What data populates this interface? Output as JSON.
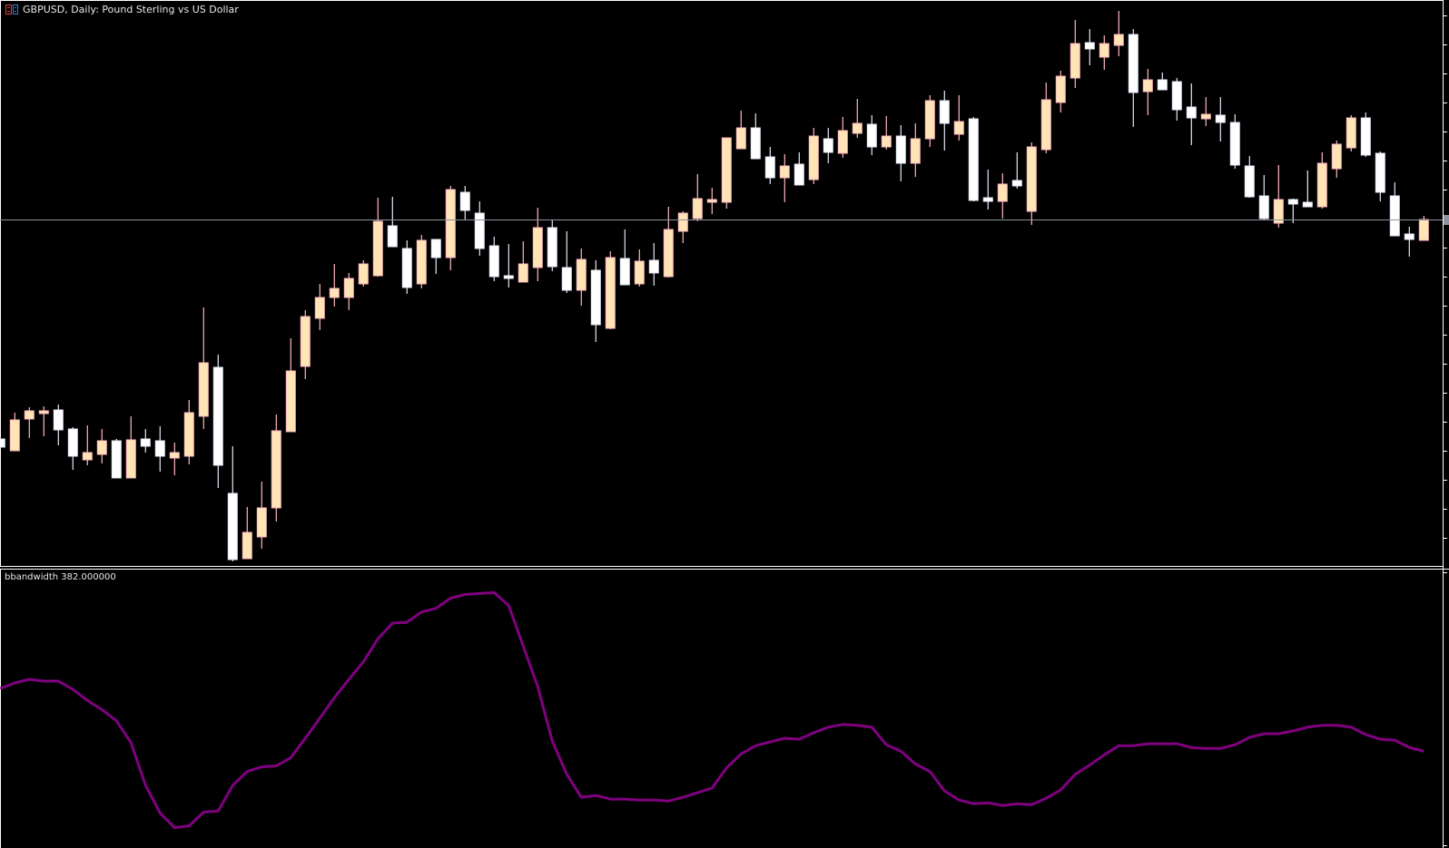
{
  "window": {
    "symbol_title": "GBPUSD, Daily:  Pound Sterling vs US Dollar"
  },
  "indicator": {
    "label": "bbandwidth 382.000000",
    "color": "#800080"
  },
  "colors": {
    "background": "#000000",
    "bull_body": "#FFE4B5",
    "bull_outline": "#FFB6C1",
    "bear_body": "#FFFFFF",
    "bear_outline": "#E6E6FA",
    "grid_border": "#FFFFFF",
    "price_line": "#8C939C"
  },
  "chart_data": [
    {
      "type": "candlestick",
      "title": "GBPUSD, Daily:  Pound Sterling vs US Dollar",
      "ylim": [
        76,
        700
      ],
      "current_price": 458,
      "ohlc": [
        [
          216,
          218,
          205,
          207
        ],
        [
          203,
          245,
          203,
          237
        ],
        [
          238,
          251,
          217,
          247
        ],
        [
          244,
          252,
          219,
          247
        ],
        [
          248,
          254,
          209,
          226
        ],
        [
          227,
          229,
          182,
          197
        ],
        [
          193,
          231,
          187,
          201
        ],
        [
          199,
          227,
          189,
          214
        ],
        [
          214,
          216,
          173,
          173
        ],
        [
          173,
          241,
          173,
          215
        ],
        [
          216,
          227,
          201,
          208
        ],
        [
          214,
          230,
          180,
          197
        ],
        [
          195,
          212,
          176,
          201
        ],
        [
          197,
          259,
          188,
          245
        ],
        [
          241,
          361,
          227,
          300
        ],
        [
          295,
          309,
          162,
          187
        ],
        [
          156,
          208,
          81,
          83
        ],
        [
          84,
          141,
          84,
          113
        ],
        [
          108,
          169,
          95,
          140
        ],
        [
          140,
          243,
          125,
          225
        ],
        [
          224,
          327,
          224,
          291
        ],
        [
          296,
          358,
          282,
          351
        ],
        [
          349,
          387,
          336,
          372
        ],
        [
          372,
          409,
          362,
          382
        ],
        [
          372,
          399,
          358,
          393
        ],
        [
          387,
          413,
          384,
          409
        ],
        [
          396,
          482,
          395,
          456
        ],
        [
          451,
          483,
          428,
          428
        ],
        [
          426,
          435,
          376,
          383
        ],
        [
          387,
          441,
          382,
          435
        ],
        [
          436,
          436,
          398,
          416
        ],
        [
          416,
          495,
          402,
          491
        ],
        [
          488,
          495,
          458,
          468
        ],
        [
          465,
          478,
          418,
          426
        ],
        [
          429,
          439,
          390,
          395
        ],
        [
          396,
          431,
          383,
          393
        ],
        [
          389,
          434,
          389,
          409
        ],
        [
          405,
          471,
          390,
          449
        ],
        [
          449,
          458,
          401,
          406
        ],
        [
          405,
          445,
          377,
          380
        ],
        [
          380,
          426,
          363,
          414
        ],
        [
          402,
          413,
          323,
          342
        ],
        [
          338,
          423,
          337,
          416
        ],
        [
          415,
          447,
          386,
          386
        ],
        [
          387,
          425,
          384,
          412
        ],
        [
          413,
          432,
          385,
          399
        ],
        [
          395,
          472,
          394,
          447
        ],
        [
          445,
          467,
          432,
          465
        ],
        [
          459,
          508,
          456,
          481
        ],
        [
          477,
          493,
          464,
          480
        ],
        [
          477,
          548,
          470,
          548
        ],
        [
          536,
          578,
          536,
          559
        ],
        [
          559,
          575,
          525,
          525
        ],
        [
          527,
          538,
          497,
          504
        ],
        [
          504,
          530,
          477,
          517
        ],
        [
          519,
          532,
          496,
          496
        ],
        [
          502,
          559,
          497,
          550
        ],
        [
          547,
          559,
          520,
          532
        ],
        [
          531,
          571,
          526,
          556
        ],
        [
          553,
          591,
          548,
          564
        ],
        [
          563,
          573,
          529,
          538
        ],
        [
          538,
          572,
          535,
          550
        ],
        [
          550,
          562,
          500,
          520
        ],
        [
          520,
          564,
          505,
          547
        ],
        [
          547,
          595,
          538,
          589
        ],
        [
          589,
          600,
          534,
          564
        ],
        [
          552,
          595,
          545,
          566
        ],
        [
          569,
          571,
          478,
          479
        ],
        [
          482,
          513,
          469,
          478
        ],
        [
          478,
          509,
          459,
          497
        ],
        [
          501,
          532,
          492,
          495
        ],
        [
          467,
          543,
          452,
          538
        ],
        [
          535,
          609,
          531,
          590
        ],
        [
          587,
          622,
          576,
          616
        ],
        [
          614,
          678,
          603,
          652
        ],
        [
          653,
          668,
          628,
          646
        ],
        [
          637,
          661,
          623,
          652
        ],
        [
          650,
          688,
          638,
          662
        ],
        [
          662,
          668,
          560,
          598
        ],
        [
          599,
          624,
          573,
          612
        ],
        [
          612,
          620,
          601,
          601
        ],
        [
          610,
          614,
          567,
          579
        ],
        [
          582,
          608,
          540,
          570
        ],
        [
          569,
          593,
          561,
          574
        ],
        [
          573,
          593,
          544,
          565
        ],
        [
          565,
          574,
          514,
          518
        ],
        [
          517,
          528,
          482,
          483
        ],
        [
          484,
          507,
          457,
          459
        ],
        [
          454,
          518,
          449,
          480
        ],
        [
          480,
          481,
          454,
          475
        ],
        [
          477,
          512,
          472,
          472
        ],
        [
          472,
          532,
          470,
          520
        ],
        [
          514,
          545,
          504,
          541
        ],
        [
          537,
          573,
          533,
          570
        ],
        [
          570,
          576,
          527,
          529
        ],
        [
          531,
          533,
          478,
          488
        ],
        [
          484,
          499,
          440,
          440
        ],
        [
          442,
          450,
          417,
          436
        ],
        [
          435,
          462,
          435,
          458
        ]
      ]
    },
    {
      "type": "line",
      "name": "bbandwidth 382.000000",
      "ylim": [
        81,
        384
      ],
      "values": [
        254,
        260,
        264,
        262,
        262,
        253,
        241,
        231,
        219,
        195,
        149,
        119,
        103,
        105,
        120,
        121,
        149,
        164,
        169,
        170,
        179,
        200,
        222,
        244,
        264,
        283,
        308,
        325,
        326,
        337,
        341,
        352,
        356,
        357,
        358,
        344,
        300,
        256,
        197,
        161,
        136,
        138,
        134,
        134,
        133,
        133,
        132,
        136,
        141,
        146,
        168,
        183,
        192,
        196,
        200,
        199,
        206,
        212,
        215,
        214,
        212,
        193,
        186,
        172,
        164,
        143,
        133,
        129,
        130,
        127,
        129,
        128,
        135,
        144,
        161,
        171,
        182,
        192,
        192,
        194,
        194,
        194,
        190,
        189,
        189,
        193,
        201,
        205,
        205,
        208,
        212,
        214,
        214,
        212,
        204,
        199,
        198,
        190,
        186
      ]
    }
  ]
}
